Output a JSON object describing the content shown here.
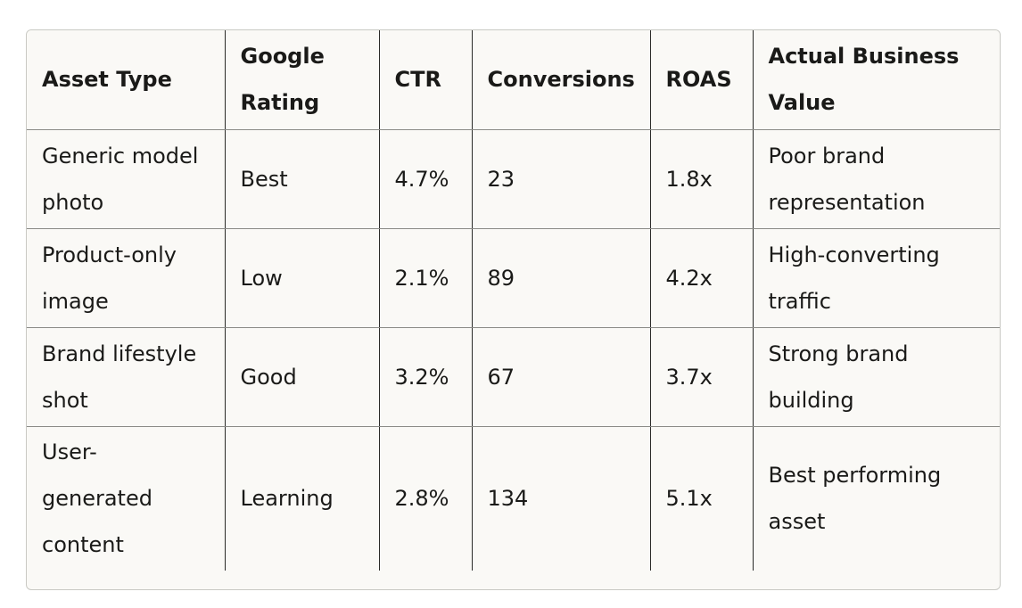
{
  "table": {
    "headers": [
      "Asset Type",
      "Google Rating",
      "CTR",
      "Conversions",
      "ROAS",
      "Actual Business Value"
    ],
    "rows": [
      [
        "Generic model photo",
        "Best",
        "4.7%",
        "23",
        "1.8x",
        "Poor brand representation"
      ],
      [
        "Product-only image",
        "Low",
        "2.1%",
        "89",
        "4.2x",
        "High-converting traffic"
      ],
      [
        "Brand lifestyle shot",
        "Good",
        "3.2%",
        "67",
        "3.7x",
        "Strong brand building"
      ],
      [
        "User-generated content",
        "Learning",
        "2.8%",
        "134",
        "5.1x",
        "Best performing asset"
      ]
    ]
  }
}
